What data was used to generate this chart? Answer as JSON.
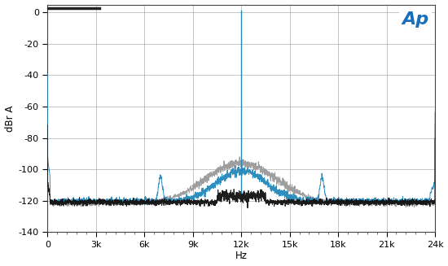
{
  "xlim": [
    0,
    24000
  ],
  "ylim": [
    -140,
    5
  ],
  "yticks": [
    0,
    -20,
    -40,
    -60,
    -80,
    -100,
    -120,
    -140
  ],
  "xticks": [
    0,
    3000,
    6000,
    9000,
    12000,
    15000,
    18000,
    21000,
    24000
  ],
  "xticklabels": [
    "0",
    "3k",
    "6k",
    "9k",
    "12k",
    "15k",
    "18k",
    "21k",
    "24k"
  ],
  "ylabel": "dBr A",
  "xlabel": "Hz",
  "bg_color": "#ffffff",
  "grid_color": "#999999",
  "line_colors": {
    "gray": "#999999",
    "blue": "#2288bb",
    "black": "#111111"
  },
  "spike_freq": 12000,
  "spike_amplitude": 1,
  "ap_logo_color": "#1a6fba"
}
